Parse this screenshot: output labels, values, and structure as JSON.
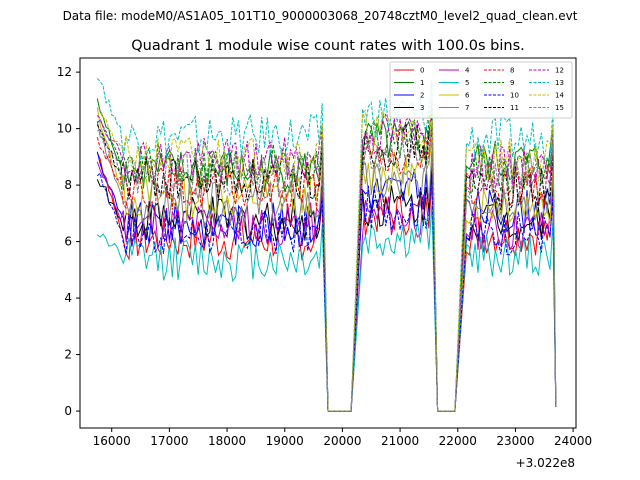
{
  "suptitle": "Data file: modeM0/AS1A05_101T10_9000003068_20748cztM0_level2_quad_clean.evt",
  "chart_data": {
    "type": "line",
    "title": "Quadrant 1 module wise count rates with 100.0s bins.",
    "xlabel": "",
    "ylabel": "",
    "x_offset_label": "+3.022e8",
    "xlim": [
      15450,
      24050
    ],
    "ylim": [
      -0.6,
      12.5
    ],
    "xticks": [
      16000,
      17000,
      18000,
      19000,
      20000,
      21000,
      22000,
      23000,
      24000
    ],
    "yticks": [
      0,
      2,
      4,
      6,
      8,
      10,
      12
    ],
    "legend_position": "top-right",
    "segments": [
      {
        "start": 15750,
        "end": 19650
      },
      {
        "start": 20350,
        "end": 21550
      },
      {
        "start": 22150,
        "end": 23650
      }
    ],
    "gaps": [
      {
        "from": 19650,
        "low_start": 19750,
        "low_end": 20150,
        "to": 20350
      },
      {
        "from": 21550,
        "low_start": 21650,
        "low_end": 21950,
        "to": 22150
      }
    ],
    "end_point": {
      "x": 23700,
      "y": 0.15
    },
    "series": [
      {
        "name": "0",
        "color": "#ff0000",
        "dash": "solid",
        "mean": 6.1,
        "start_value": 9.3,
        "seg2_mean": 7.0,
        "seg3_mean": 6.3
      },
      {
        "name": "1",
        "color": "#008000",
        "dash": "solid",
        "mean": 8.5,
        "start_value": 10.9,
        "seg2_mean": 9.5,
        "seg3_mean": 8.8
      },
      {
        "name": "2",
        "color": "#0000ff",
        "dash": "solid",
        "mean": 6.6,
        "start_value": 9.1,
        "seg2_mean": 7.8,
        "seg3_mean": 7.1
      },
      {
        "name": "3",
        "color": "#000000",
        "dash": "solid",
        "mean": 6.8,
        "start_value": 8.2,
        "seg2_mean": 7.3,
        "seg3_mean": 6.8
      },
      {
        "name": "4",
        "color": "#bf00bf",
        "dash": "solid",
        "mean": 6.6,
        "start_value": 8.9,
        "seg2_mean": 6.9,
        "seg3_mean": 6.4
      },
      {
        "name": "5",
        "color": "#00bfbf",
        "dash": "solid",
        "mean": 5.4,
        "start_value": 6.4,
        "seg2_mean": 6.1,
        "seg3_mean": 5.5
      },
      {
        "name": "6",
        "color": "#bfbf00",
        "dash": "solid",
        "mean": 7.6,
        "start_value": 10.6,
        "seg2_mean": 8.4,
        "seg3_mean": 7.4
      },
      {
        "name": "7",
        "color": "#808080",
        "dash": "solid",
        "mean": 7.3,
        "start_value": 10.2,
        "seg2_mean": 8.0,
        "seg3_mean": 7.6
      },
      {
        "name": "8",
        "color": "#ff0000",
        "dash": "dashed",
        "mean": 7.9,
        "start_value": 9.7,
        "seg2_mean": 8.9,
        "seg3_mean": 8.0
      },
      {
        "name": "9",
        "color": "#008000",
        "dash": "dashed",
        "mean": 8.7,
        "start_value": 10.3,
        "seg2_mean": 9.6,
        "seg3_mean": 8.5
      },
      {
        "name": "10",
        "color": "#0000ff",
        "dash": "dashed",
        "mean": 6.3,
        "start_value": 8.5,
        "seg2_mean": 7.2,
        "seg3_mean": 6.3
      },
      {
        "name": "11",
        "color": "#000000",
        "dash": "dashed",
        "mean": 8.2,
        "start_value": 10.0,
        "seg2_mean": 9.4,
        "seg3_mean": 7.9
      },
      {
        "name": "12",
        "color": "#bf00bf",
        "dash": "dashed",
        "mean": 8.9,
        "start_value": 10.4,
        "seg2_mean": 9.8,
        "seg3_mean": 8.6
      },
      {
        "name": "13",
        "color": "#00bfbf",
        "dash": "dashed",
        "mean": 9.7,
        "start_value": 11.8,
        "seg2_mean": 10.5,
        "seg3_mean": 9.6
      },
      {
        "name": "14",
        "color": "#bfbf00",
        "dash": "dashed",
        "mean": 9.0,
        "start_value": 10.8,
        "seg2_mean": 9.9,
        "seg3_mean": 8.9
      },
      {
        "name": "15",
        "color": "#808080",
        "dash": "dashed",
        "mean": 8.4,
        "start_value": 10.1,
        "seg2_mean": 9.0,
        "seg3_mean": 8.3
      }
    ]
  }
}
